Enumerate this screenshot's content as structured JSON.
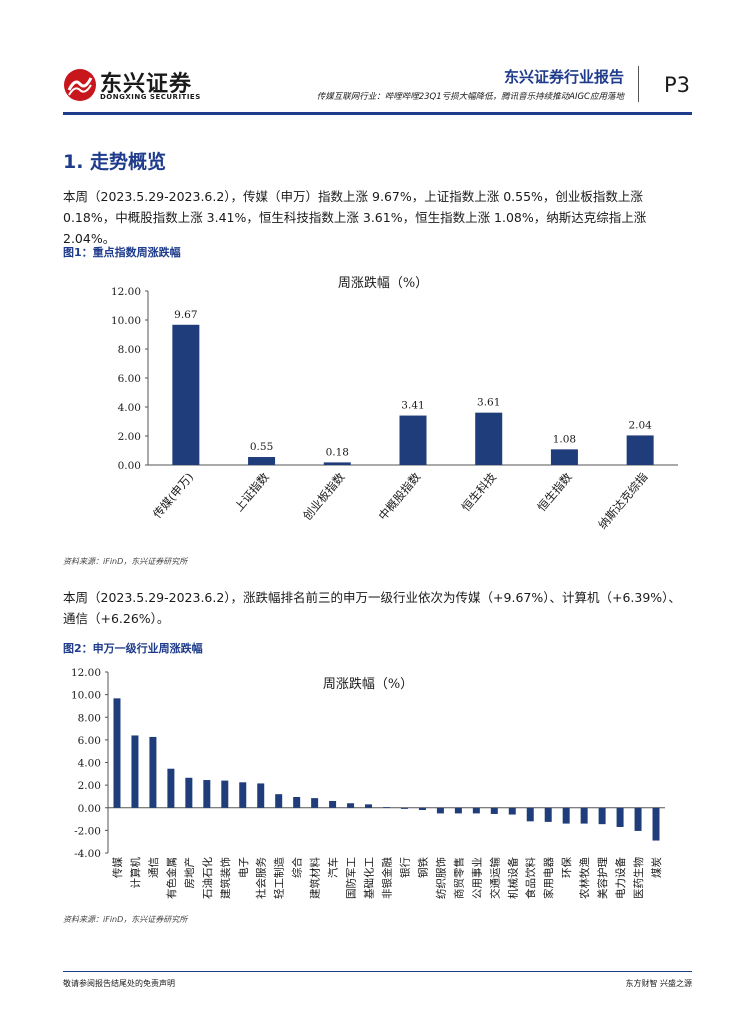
{
  "header": {
    "logo_cn": "东兴证券",
    "logo_en": "DONGXING SECURITIES",
    "report_type": "东兴证券行业报告",
    "subtitle": "传媒互联网行业：哔哩哔哩23Q1亏损大幅降低，腾讯音乐持续推动AIGC应用落地",
    "page": "P3"
  },
  "section": {
    "title": "1. 走势概览"
  },
  "paragraphs": [
    "本周（2023.5.29-2023.6.2），传媒（申万）指数上涨 9.67%，上证指数上涨 0.55%，创业板指数上涨 0.18%，中概股指数上涨 3.41%，恒生科技指数上涨 3.61%，恒生指数上涨 1.08%，纳斯达克综指上涨 2.04%。",
    "本周（2023.5.29-2023.6.2），涨跌幅排名前三的申万一级行业依次为传媒（+9.67%）、计算机（+6.39%）、通信（+6.26%）。"
  ],
  "figures": {
    "fig1_label": "图1：重点指数周涨跌幅",
    "fig2_label": "图2：申万一级行业周涨跌幅",
    "source1": "资料来源：iFinD，东兴证券研究所",
    "source2": "资料来源：iFinD，东兴证券研究所"
  },
  "footer": {
    "left": "敬请参阅报告结尾处的免责声明",
    "right": "东方财智 兴盛之源"
  },
  "colors": {
    "brand": "#1f3c8c",
    "bar": "#1f3d7a",
    "logo_red": "#c8161d"
  },
  "chart_data": [
    {
      "type": "bar",
      "title": "周涨跌幅（%）",
      "categories": [
        "传媒(申万)",
        "上证指数",
        "创业板指数",
        "中概股指数",
        "恒生科技",
        "恒生指数",
        "纳斯达克综指"
      ],
      "values": [
        9.67,
        0.55,
        0.18,
        3.41,
        3.61,
        1.08,
        2.04
      ],
      "data_labels": [
        "9.67",
        "0.55",
        "0.18",
        "3.41",
        "3.61",
        "1.08",
        "2.04"
      ],
      "y_ticks": [
        "0.00",
        "2.00",
        "4.00",
        "6.00",
        "8.00",
        "10.00",
        "12.00"
      ],
      "ylim": [
        0,
        12
      ],
      "grid": false
    },
    {
      "type": "bar",
      "title": "周涨跌幅（%）",
      "categories": [
        "传媒",
        "计算机",
        "通信",
        "有色金属",
        "房地产",
        "石油石化",
        "建筑装饰",
        "电子",
        "社会服务",
        "轻工制造",
        "综合",
        "建筑材料",
        "汽车",
        "国防军工",
        "基础化工",
        "非银金融",
        "银行",
        "钢铁",
        "纺织服饰",
        "商贸零售",
        "公用事业",
        "交通运输",
        "机械设备",
        "食品饮料",
        "家用电器",
        "环保",
        "农林牧渔",
        "美容护理",
        "电力设备",
        "医药生物",
        "煤炭"
      ],
      "values": [
        9.67,
        6.39,
        6.26,
        3.45,
        2.65,
        2.45,
        2.4,
        2.25,
        2.15,
        1.2,
        0.95,
        0.85,
        0.6,
        0.4,
        0.3,
        0.05,
        -0.1,
        -0.2,
        -0.5,
        -0.5,
        -0.5,
        -0.55,
        -0.6,
        -1.2,
        -1.25,
        -1.4,
        -1.4,
        -1.45,
        -1.7,
        -2.05,
        -2.9
      ],
      "y_ticks": [
        "-4.00",
        "-2.00",
        "0.00",
        "2.00",
        "4.00",
        "6.00",
        "8.00",
        "10.00",
        "12.00"
      ],
      "ylim": [
        -4,
        12
      ],
      "grid": false
    }
  ]
}
